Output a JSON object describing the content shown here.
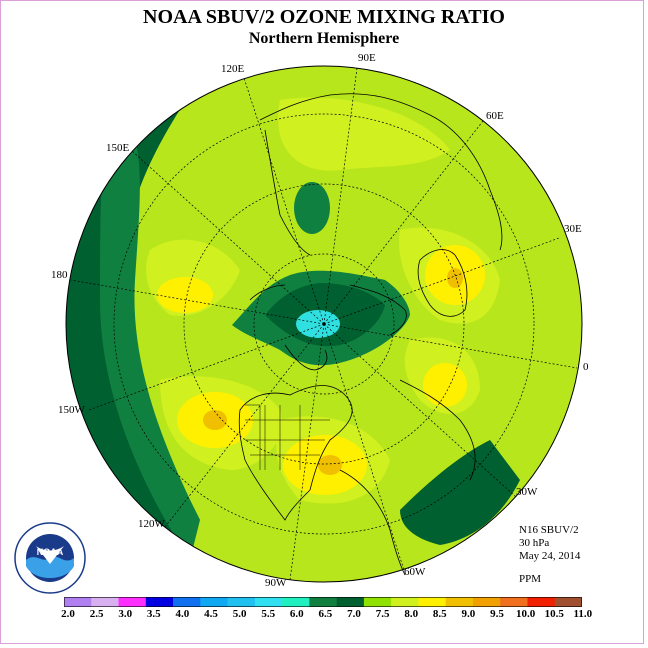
{
  "title": "NOAA SBUV/2 OZONE MIXING RATIO",
  "subtitle": "Northern Hemisphere",
  "longitude_labels": [
    "90E",
    "60E",
    "30E",
    "0",
    "30W",
    "60W",
    "90W",
    "120W",
    "150W",
    "180",
    "150E",
    "120E"
  ],
  "info": {
    "instrument": "N16 SBUV/2",
    "level": "30 hPa",
    "date": "May 24, 2014",
    "units": "PPM"
  },
  "colorbar": {
    "ticks": [
      "2.0",
      "2.5",
      "3.0",
      "3.5",
      "4.0",
      "4.5",
      "5.0",
      "5.5",
      "6.0",
      "6.5",
      "7.0",
      "7.5",
      "8.0",
      "8.5",
      "9.0",
      "9.5",
      "10.0",
      "10.5",
      "11.0"
    ],
    "colors": [
      "#b080f0",
      "#d8b0f0",
      "#ff30ff",
      "#0000e0",
      "#1070f0",
      "#10a8f0",
      "#20c0f0",
      "#30e0f0",
      "#20f0c0",
      "#108040",
      "#006030",
      "#90e000",
      "#d0f020",
      "#fff000",
      "#f0c000",
      "#f0a000",
      "#f07020",
      "#f02000",
      "#a05030"
    ]
  },
  "logo_text": "NOAA"
}
